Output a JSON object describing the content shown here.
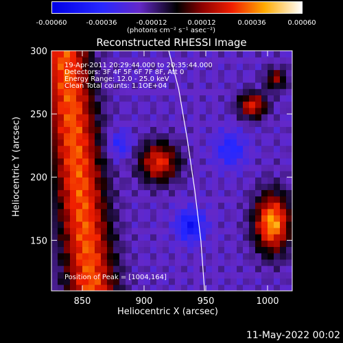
{
  "chart_data": {
    "type": "heatmap",
    "title": "Reconstructed RHESSI Image",
    "xlabel": "Heliocentric X (arcsec)",
    "ylabel": "Heliocentric Y (arcsec)",
    "xlim": [
      825,
      1020
    ],
    "ylim": [
      110,
      300
    ],
    "xticks": [
      850,
      900,
      950,
      1000
    ],
    "yticks": [
      150,
      200,
      250,
      300
    ],
    "colorbar": {
      "ticks": [
        "-0.00060",
        "-0.00036",
        "-0.00012",
        "0.00012",
        "0.00036",
        "0.00060"
      ],
      "unit": "(photons cm",
      "unit_full": "(photons cm⁻² s⁻¹ asec⁻²)",
      "range": [
        -0.0006,
        0.0006
      ]
    },
    "annotations": [
      "19-Apr-2011 20:29:44.000 to 20:35:44.000",
      "Detectors: 3F 4F 5F 6F 7F 8F, Att 0",
      "Energy Range: 12.0 - 25.0 keV",
      "Clean     Total counts: 1.1OE+04",
      "Position of Peak = [1004,164]"
    ],
    "sources": [
      {
        "x": 1004,
        "y": 164,
        "peak": 0.0006,
        "sx": 10,
        "sy": 16
      },
      {
        "x": 912,
        "y": 212,
        "peak": 0.00044,
        "sx": 11,
        "sy": 11
      },
      {
        "x": 988,
        "y": 257,
        "peak": 0.00042,
        "sx": 8,
        "sy": 7
      },
      {
        "x": 1007,
        "y": 278,
        "peak": 0.0003,
        "sx": 6,
        "sy": 6
      }
    ],
    "limb_curve": [
      [
        920,
        300
      ],
      [
        928,
        270
      ],
      [
        935,
        230
      ],
      [
        941,
        190
      ],
      [
        946,
        150
      ],
      [
        949,
        110
      ]
    ]
  },
  "footer": {
    "date": "11-May-2022 00:02"
  }
}
